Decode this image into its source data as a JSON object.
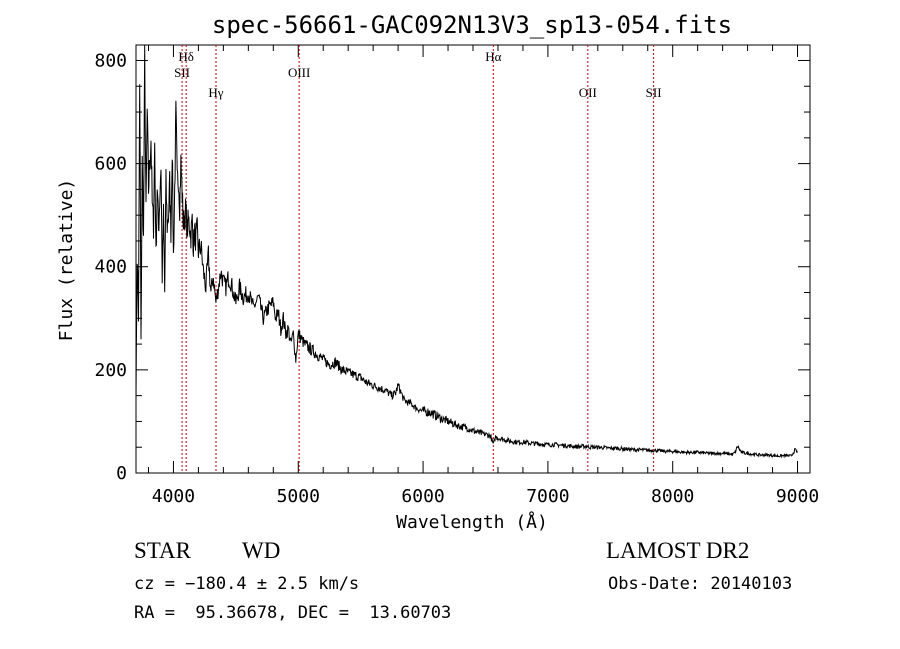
{
  "chart_data": {
    "type": "line",
    "title": "spec-56661-GAC092N13V3_sp13-054.fits",
    "xlabel": "Wavelength (Å)",
    "ylabel": "Flux (relative)",
    "xlim": [
      3700,
      9100
    ],
    "ylim": [
      0,
      830
    ],
    "xticks": [
      4000,
      5000,
      6000,
      7000,
      8000,
      9000
    ],
    "yticks": [
      0,
      200,
      400,
      600,
      800
    ],
    "grid": false,
    "line_color": "#000000",
    "marker_color": "#cc0000",
    "series": [
      {
        "x": [
          3700,
          3710,
          3720,
          3730,
          3740,
          3750,
          3760,
          3770,
          3780,
          3790,
          3800,
          3810,
          3820,
          3830,
          3840,
          3850,
          3860,
          3870,
          3880,
          3890,
          3900,
          3910,
          3920,
          3930,
          3940,
          3950,
          3960,
          3970,
          3980,
          3990,
          4000,
          4010,
          4020,
          4030,
          4040,
          4050,
          4060,
          4070,
          4080,
          4090,
          4100,
          4110,
          4120,
          4130,
          4140,
          4150,
          4160,
          4170,
          4180,
          4190,
          4200,
          4220,
          4240,
          4260,
          4280,
          4300,
          4320,
          4340,
          4360,
          4380,
          4400,
          4420,
          4440,
          4460,
          4480,
          4500,
          4530,
          4560,
          4600,
          4640,
          4680,
          4720,
          4760,
          4800,
          4820,
          4840,
          4860,
          4880,
          4900,
          4920,
          4940,
          4960,
          4980,
          5000,
          5050,
          5100,
          5150,
          5200,
          5250,
          5300,
          5350,
          5400,
          5450,
          5500,
          5550,
          5600,
          5650,
          5700,
          5750,
          5780,
          5800,
          5850,
          5900,
          5950,
          6000,
          6050,
          6100,
          6150,
          6200,
          6250,
          6300,
          6350,
          6400,
          6450,
          6500,
          6540,
          6563,
          6580,
          6600,
          6650,
          6700,
          6750,
          6800,
          6850,
          6900,
          6950,
          7000,
          7050,
          7100,
          7150,
          7200,
          7250,
          7300,
          7350,
          7400,
          7450,
          7500,
          7550,
          7600,
          7650,
          7700,
          7750,
          7800,
          7850,
          7900,
          7950,
          8000,
          8050,
          8100,
          8150,
          8200,
          8250,
          8300,
          8350,
          8400,
          8450,
          8480,
          8500,
          8520,
          8550,
          8600,
          8650,
          8700,
          8750,
          8800,
          8850,
          8900,
          8950,
          8980,
          9000
        ],
        "y": [
          150,
          420,
          300,
          750,
          250,
          600,
          450,
          800,
          500,
          700,
          550,
          600,
          650,
          520,
          480,
          640,
          420,
          560,
          470,
          530,
          600,
          380,
          500,
          350,
          560,
          480,
          500,
          560,
          470,
          640,
          420,
          550,
          690,
          560,
          580,
          520,
          600,
          540,
          480,
          500,
          510,
          470,
          490,
          480,
          460,
          490,
          440,
          470,
          450,
          470,
          430,
          440,
          390,
          360,
          420,
          350,
          380,
          330,
          360,
          390,
          370,
          360,
          380,
          370,
          350,
          330,
          360,
          340,
          350,
          320,
          340,
          300,
          320,
          330,
          300,
          310,
          280,
          300,
          270,
          280,
          250,
          270,
          220,
          270,
          250,
          240,
          230,
          220,
          210,
          215,
          200,
          195,
          190,
          185,
          175,
          170,
          165,
          160,
          150,
          155,
          170,
          140,
          135,
          125,
          120,
          118,
          112,
          105,
          100,
          95,
          90,
          88,
          82,
          78,
          75,
          72,
          55,
          70,
          68,
          65,
          62,
          60,
          60,
          58,
          57,
          56,
          55,
          55,
          54,
          53,
          52,
          51,
          52,
          50,
          50,
          49,
          48,
          48,
          47,
          46,
          45,
          45,
          44,
          44,
          43,
          42,
          42,
          41,
          40,
          40,
          40,
          39,
          38,
          38,
          38,
          37,
          36,
          40,
          52,
          40,
          38,
          36,
          35,
          35,
          34,
          33,
          34,
          33,
          45,
          40
        ]
      }
    ],
    "lines": [
      {
        "label": "Hδ",
        "x": 4102,
        "label_row": 0
      },
      {
        "label": "SII",
        "x": 4069,
        "label_row": 1
      },
      {
        "label": "Hγ",
        "x": 4341,
        "label_row": 2
      },
      {
        "label": "OIII",
        "x": 5007,
        "label_row": 1
      },
      {
        "label": "Hα",
        "x": 6563,
        "label_row": 0
      },
      {
        "label": "OII",
        "x": 7320,
        "label_row": 2
      },
      {
        "label": "SII",
        "x": 7847,
        "label_row": 2
      }
    ]
  },
  "info": {
    "object_class": "STAR",
    "subclass": "WD",
    "survey": "LAMOST DR2",
    "cz": "cz = −180.4 ± 2.5 km/s",
    "obs_date": "Obs-Date: 20140103",
    "coords": "RA =  95.36678, DEC =  13.60703"
  }
}
